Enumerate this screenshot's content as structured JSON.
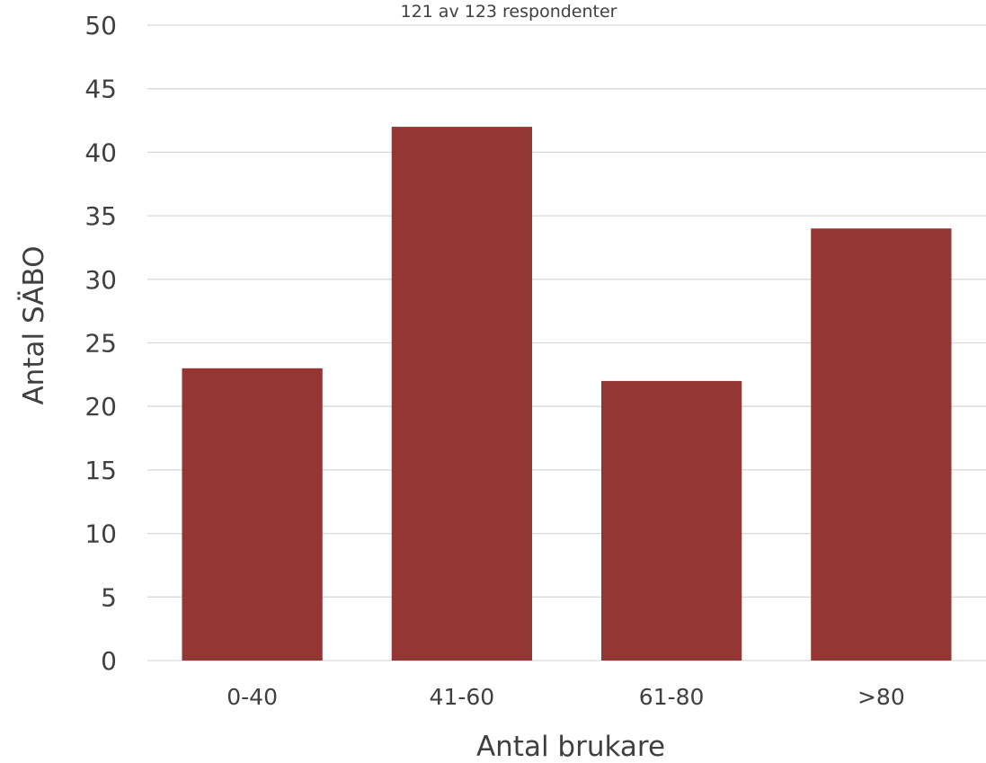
{
  "chart_data": {
    "type": "bar",
    "subtitle": "121 av 123 respondenter",
    "categories": [
      "0-40",
      "41-60",
      "61-80",
      ">80"
    ],
    "values": [
      23,
      42,
      22,
      34
    ],
    "xlabel": "Antal brukare",
    "ylabel": "Antal SÄBO",
    "ylim": [
      0,
      50
    ],
    "yticks": [
      0,
      5,
      10,
      15,
      20,
      25,
      30,
      35,
      40,
      45,
      50
    ],
    "grid": true,
    "bar_color": "#943634",
    "legend": "none"
  }
}
